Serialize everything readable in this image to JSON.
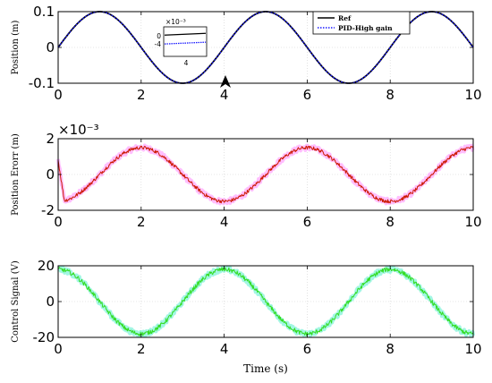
{
  "figure": {
    "xlabel": "Time (s)"
  },
  "chart_data": [
    {
      "id": "position",
      "type": "line",
      "ylabel": "Position (m)",
      "ylabel_exponent": "",
      "xlim": [
        0,
        10
      ],
      "ylim": [
        -0.1,
        0.1
      ],
      "xticks": [
        0,
        2,
        4,
        6,
        8,
        10
      ],
      "yticks": [
        -0.1,
        0,
        0.1
      ],
      "ytick_labels": [
        "-0.1",
        "0",
        "0.1"
      ],
      "grid": true,
      "legend_position": "top-right",
      "series": [
        {
          "name": "Ref",
          "color": "#000000",
          "function": "sine",
          "amplitude": 0.1,
          "period": 4,
          "offset": 0,
          "noise": 0
        },
        {
          "name": "PID-High gain",
          "color": "#1a1aff",
          "dash": "dotted",
          "function": "sine",
          "amplitude": 0.1,
          "period": 4,
          "offset": 0,
          "noise": 0
        }
      ],
      "inset": {
        "exponent": "×10⁻³",
        "xticks": [
          "4"
        ],
        "yticks": [
          "0",
          "-4"
        ],
        "xlim": [
          3.3,
          4.7
        ],
        "ylim": [
          -7,
          3
        ],
        "ref_values": [
          0.2,
          0.8
        ],
        "pid_values": [
          -2.8,
          -2.2
        ]
      },
      "marker_at_x": 4
    },
    {
      "id": "position-error",
      "type": "line",
      "ylabel": "Position Erorr (m)",
      "ylabel_exponent": "×10⁻³",
      "xlim": [
        0,
        10
      ],
      "ylim": [
        -2,
        2
      ],
      "xticks": [
        0,
        2,
        4,
        6,
        8,
        10
      ],
      "yticks": [
        -2,
        0,
        2
      ],
      "ytick_labels": [
        "-2",
        "0",
        "2"
      ],
      "grid": true,
      "series": [
        {
          "name": "",
          "color": "#ff88ff",
          "band": true,
          "function": "sine",
          "amplitude": 1.5,
          "period": 4,
          "offset": -1,
          "noise": 0.15
        },
        {
          "name": "",
          "color": "#cc1a00",
          "function": "sine",
          "amplitude": 1.5,
          "period": 4,
          "offset": -1,
          "noise": 0.1
        }
      ]
    },
    {
      "id": "control-signal",
      "type": "line",
      "ylabel": "Control Signal (V)",
      "ylabel_exponent": "",
      "xlim": [
        0,
        10
      ],
      "ylim": [
        -20,
        20
      ],
      "xticks": [
        0,
        2,
        4,
        6,
        8,
        10
      ],
      "yticks": [
        -20,
        0,
        20
      ],
      "ytick_labels": [
        "-20",
        "0",
        "20"
      ],
      "grid": true,
      "series": [
        {
          "name": "",
          "color": "#55eecc",
          "band": true,
          "function": "cosine",
          "amplitude": 18,
          "period": 4,
          "offset": 0,
          "noise": 1.5
        },
        {
          "name": "",
          "color": "#33dd22",
          "function": "cosine",
          "amplitude": 18,
          "period": 4,
          "offset": 0,
          "noise": 1.2
        }
      ]
    }
  ]
}
